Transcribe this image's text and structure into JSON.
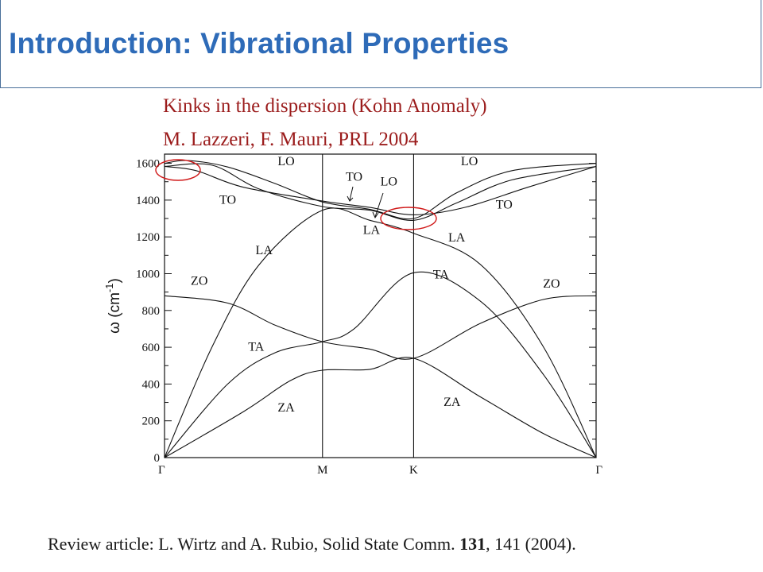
{
  "slide": {
    "title": "Introduction: Vibrational Properties",
    "subtitle_line1": "Kinks in the dispersion (Kohn Anomaly)",
    "subtitle_line2": "M. Lazzeri, F. Mauri, PRL 2004",
    "footer_prefix": "Review article: L. Wirtz and A. Rubio, Solid State Comm. ",
    "footer_volume": "131",
    "footer_suffix": ", 141 (2004).",
    "colors": {
      "title": "#2e6bb8",
      "subtitle": "#9b1c1c",
      "highlight_ellipse": "#d01818"
    }
  },
  "chart_data": {
    "type": "line",
    "title": "",
    "ylabel_main": "ω (cm",
    "ylabel_sup": "-1",
    "ylabel_close": ")",
    "ylim": [
      0,
      1650
    ],
    "yticks": [
      0,
      200,
      400,
      600,
      800,
      1000,
      1200,
      1400,
      1600
    ],
    "ytick_labels": [
      "0",
      "200",
      "400",
      "600",
      "800",
      "1000",
      "1200",
      "1400",
      "1600"
    ],
    "xpoints": [
      {
        "label": "Γ",
        "pos": 0
      },
      {
        "label": "M",
        "pos": 1
      },
      {
        "label": "K",
        "pos": 1.577
      },
      {
        "label": "Γ",
        "pos": 2.732
      }
    ],
    "grid": false,
    "series": [
      {
        "points": [
          [
            0,
            1583
          ],
          [
            0.3,
            1590
          ],
          [
            0.6,
            1460
          ],
          [
            1,
            1365
          ],
          [
            1.3,
            1345
          ],
          [
            1.577,
            1290
          ],
          [
            1.85,
            1385
          ],
          [
            2.2,
            1510
          ],
          [
            2.732,
            1583
          ]
        ]
      },
      {
        "points": [
          [
            0,
            1583
          ],
          [
            0.2,
            1560
          ],
          [
            0.5,
            1470
          ],
          [
            1,
            1395
          ],
          [
            1.3,
            1360
          ],
          [
            1.577,
            1320
          ],
          [
            1.9,
            1360
          ],
          [
            2.3,
            1470
          ],
          [
            2.732,
            1583
          ]
        ]
      },
      {
        "points": [
          [
            0,
            1600
          ],
          [
            0.15,
            1615
          ],
          [
            0.4,
            1580
          ],
          [
            0.7,
            1490
          ],
          [
            1,
            1390
          ],
          [
            1.3,
            1350
          ],
          [
            1.577,
            1300
          ],
          [
            1.85,
            1440
          ],
          [
            2.2,
            1560
          ],
          [
            2.732,
            1600
          ]
        ]
      },
      {
        "points": [
          [
            0,
            0
          ],
          [
            0.3,
            600
          ],
          [
            0.6,
            1050
          ],
          [
            1,
            1345
          ],
          [
            1.3,
            1290
          ],
          [
            1.577,
            1220
          ],
          [
            2,
            1050
          ],
          [
            2.4,
            600
          ],
          [
            2.732,
            0
          ]
        ]
      },
      {
        "points": [
          [
            0,
            0
          ],
          [
            0.4,
            400
          ],
          [
            0.7,
            570
          ],
          [
            1,
            630
          ],
          [
            1.2,
            700
          ],
          [
            1.577,
            1005
          ],
          [
            2,
            850
          ],
          [
            2.4,
            450
          ],
          [
            2.732,
            0
          ]
        ]
      },
      {
        "points": [
          [
            0,
            0
          ],
          [
            0.5,
            250
          ],
          [
            0.8,
            420
          ],
          [
            1,
            475
          ],
          [
            1.3,
            480
          ],
          [
            1.577,
            540
          ],
          [
            2,
            330
          ],
          [
            2.4,
            130
          ],
          [
            2.732,
            0
          ]
        ]
      },
      {
        "points": [
          [
            0,
            880
          ],
          [
            0.4,
            840
          ],
          [
            0.7,
            720
          ],
          [
            1,
            630
          ],
          [
            1.3,
            590
          ],
          [
            1.577,
            540
          ],
          [
            2,
            730
          ],
          [
            2.4,
            860
          ],
          [
            2.732,
            880
          ]
        ]
      }
    ],
    "branch_labels": [
      {
        "text": "LO",
        "x": 0.77,
        "y": 1590
      },
      {
        "text": "TO",
        "x": 0.4,
        "y": 1380
      },
      {
        "text": "TO",
        "x": 1.2,
        "y": 1505
      },
      {
        "text": "LO",
        "x": 1.42,
        "y": 1480
      },
      {
        "text": "LA",
        "x": 0.63,
        "y": 1105
      },
      {
        "text": "LA",
        "x": 1.31,
        "y": 1215
      },
      {
        "text": "ZO",
        "x": 0.22,
        "y": 940
      },
      {
        "text": "TA",
        "x": 0.58,
        "y": 580
      },
      {
        "text": "ZA",
        "x": 0.77,
        "y": 250
      },
      {
        "text": "LO",
        "x": 1.93,
        "y": 1590
      },
      {
        "text": "TO",
        "x": 2.15,
        "y": 1355
      },
      {
        "text": "LA",
        "x": 1.85,
        "y": 1175
      },
      {
        "text": "TA",
        "x": 1.75,
        "y": 975
      },
      {
        "text": "ZO",
        "x": 2.45,
        "y": 925
      },
      {
        "text": "ZA",
        "x": 1.82,
        "y": 280
      }
    ]
  }
}
